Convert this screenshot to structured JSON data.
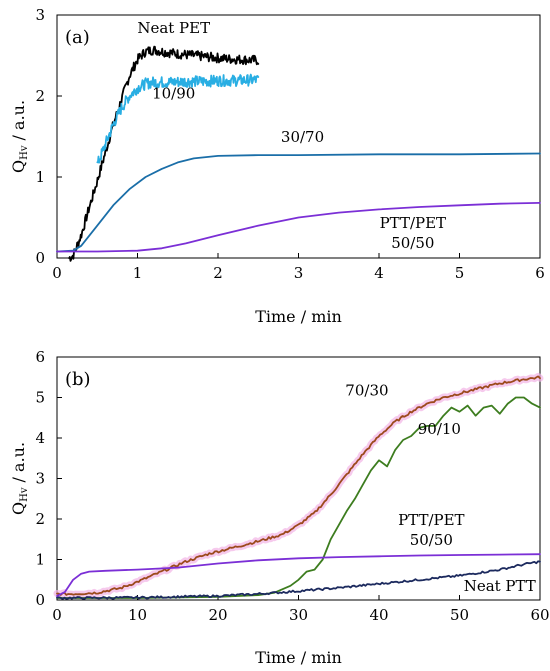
{
  "chart_data": [
    {
      "type": "line",
      "panel_label": "(a)",
      "xlabel": "Time / min",
      "ylabel_main": "Q",
      "ylabel_sub": "Hv",
      "ylabel_unit": " / a.u.",
      "xlim": [
        0,
        6
      ],
      "ylim": [
        0,
        3
      ],
      "xticks": [
        0,
        1,
        2,
        3,
        4,
        5,
        6
      ],
      "yticks": [
        0,
        1,
        2,
        3
      ],
      "series": [
        {
          "name": "Neat PET",
          "color": "#000000",
          "noise": 0.06,
          "x": [
            0.15,
            0.2,
            0.3,
            0.4,
            0.5,
            0.6,
            0.7,
            0.8,
            0.9,
            1.0,
            1.1,
            1.2,
            1.3,
            1.5,
            1.7,
            1.9,
            2.1,
            2.3,
            2.5
          ],
          "y": [
            0.0,
            0.03,
            0.28,
            0.62,
            0.95,
            1.3,
            1.65,
            1.95,
            2.25,
            2.45,
            2.55,
            2.57,
            2.55,
            2.52,
            2.5,
            2.48,
            2.46,
            2.45,
            2.44
          ]
        },
        {
          "name": "10/90",
          "color": "#29aee3",
          "noise": 0.07,
          "x": [
            0.5,
            0.6,
            0.7,
            0.8,
            0.9,
            1.0,
            1.1,
            1.2,
            1.4,
            1.6,
            1.8,
            2.0,
            2.2,
            2.5
          ],
          "y": [
            1.15,
            1.4,
            1.65,
            1.85,
            2.0,
            2.1,
            2.15,
            2.17,
            2.17,
            2.18,
            2.18,
            2.19,
            2.19,
            2.2
          ]
        },
        {
          "name": "30/70",
          "color": "#1a6ea8",
          "noise": 0.0,
          "x": [
            0.0,
            0.2,
            0.3,
            0.5,
            0.7,
            0.9,
            1.1,
            1.3,
            1.5,
            1.7,
            2.0,
            2.5,
            3.0,
            4.0,
            5.0,
            6.0
          ],
          "y": [
            0.08,
            0.09,
            0.15,
            0.4,
            0.65,
            0.85,
            1.0,
            1.1,
            1.18,
            1.23,
            1.26,
            1.27,
            1.27,
            1.28,
            1.28,
            1.29
          ]
        },
        {
          "name": "PTT/PET 50/50",
          "color": "#7b2fd6",
          "noise": 0.0,
          "x": [
            0.0,
            0.5,
            1.0,
            1.3,
            1.6,
            2.0,
            2.5,
            3.0,
            3.5,
            4.0,
            4.5,
            5.0,
            5.5,
            6.0
          ],
          "y": [
            0.08,
            0.08,
            0.09,
            0.12,
            0.18,
            0.28,
            0.4,
            0.5,
            0.56,
            0.6,
            0.63,
            0.65,
            0.67,
            0.68
          ]
        }
      ],
      "annotations": [
        {
          "lines": [
            "Neat PET"
          ],
          "x": 1.45,
          "y": 2.78
        },
        {
          "lines": [
            "10/90"
          ],
          "x": 1.45,
          "y": 1.97
        },
        {
          "lines": [
            "30/70"
          ],
          "x": 3.05,
          "y": 1.43
        },
        {
          "lines": [
            "PTT/PET",
            "50/50"
          ],
          "x": 4.42,
          "y": 0.37
        }
      ]
    },
    {
      "type": "line",
      "panel_label": "(b)",
      "xlabel": "Time / min",
      "ylabel_main": "Q",
      "ylabel_sub": "Hv",
      "ylabel_unit": " / a.u.",
      "xlim": [
        0,
        60
      ],
      "ylim": [
        0,
        6
      ],
      "xticks": [
        0,
        10,
        20,
        30,
        40,
        50,
        60
      ],
      "yticks": [
        0,
        1,
        2,
        3,
        4,
        5,
        6
      ],
      "series": [
        {
          "name": "70/30",
          "color": "#9c4a1c",
          "halo": "#f2b3e6",
          "noise": 0.03,
          "x": [
            0,
            2,
            5,
            8,
            10,
            13,
            16,
            19,
            22,
            25,
            28,
            30,
            32,
            34,
            36,
            38,
            40,
            42,
            44,
            46,
            48,
            50,
            52,
            55,
            58,
            60
          ],
          "y": [
            0.15,
            0.15,
            0.18,
            0.3,
            0.45,
            0.7,
            0.95,
            1.15,
            1.3,
            1.45,
            1.62,
            1.85,
            2.15,
            2.6,
            3.1,
            3.6,
            4.05,
            4.4,
            4.65,
            4.85,
            5.0,
            5.1,
            5.2,
            5.35,
            5.45,
            5.5
          ]
        },
        {
          "name": "90/10",
          "color": "#3d7d1f",
          "noise": 0.0,
          "x": [
            0,
            10,
            20,
            25,
            27,
            29,
            30,
            31,
            32,
            33,
            34,
            35,
            36,
            37,
            38,
            39,
            40,
            41,
            42,
            43,
            44,
            45,
            46,
            47,
            48,
            49,
            50,
            51,
            52,
            53,
            54,
            55,
            56,
            57,
            58,
            59,
            60
          ],
          "y": [
            0.05,
            0.05,
            0.08,
            0.12,
            0.18,
            0.35,
            0.5,
            0.7,
            0.75,
            1.0,
            1.5,
            1.85,
            2.2,
            2.5,
            2.85,
            3.2,
            3.45,
            3.3,
            3.7,
            3.95,
            4.05,
            4.25,
            4.3,
            4.3,
            4.55,
            4.75,
            4.65,
            4.8,
            4.55,
            4.75,
            4.8,
            4.6,
            4.85,
            5.0,
            5.0,
            4.85,
            4.75
          ]
        },
        {
          "name": "PTT/PET 50/50",
          "color": "#7b2fd6",
          "noise": 0.0,
          "x": [
            0,
            1,
            2,
            3,
            4,
            6,
            10,
            15,
            20,
            25,
            30,
            35,
            40,
            45,
            50,
            55,
            60
          ],
          "y": [
            0.1,
            0.2,
            0.5,
            0.65,
            0.7,
            0.72,
            0.75,
            0.8,
            0.9,
            0.98,
            1.03,
            1.06,
            1.08,
            1.1,
            1.11,
            1.12,
            1.13
          ]
        },
        {
          "name": "Neat PTT",
          "color": "#1c2a5e",
          "noise": 0.025,
          "x": [
            0,
            10,
            20,
            25,
            30,
            35,
            40,
            45,
            50,
            55,
            58,
            60
          ],
          "y": [
            0.05,
            0.06,
            0.1,
            0.15,
            0.22,
            0.3,
            0.4,
            0.5,
            0.6,
            0.75,
            0.88,
            0.95
          ]
        }
      ],
      "annotations": [
        {
          "lines": [
            "70/30"
          ],
          "x": 38.5,
          "y": 5.05
        },
        {
          "lines": [
            "90/10"
          ],
          "x": 47.5,
          "y": 4.1
        },
        {
          "lines": [
            "PTT/PET",
            "50/50"
          ],
          "x": 46.5,
          "y": 1.85
        },
        {
          "lines": [
            "Neat PTT"
          ],
          "x": 55.0,
          "y": 0.22
        }
      ]
    }
  ]
}
